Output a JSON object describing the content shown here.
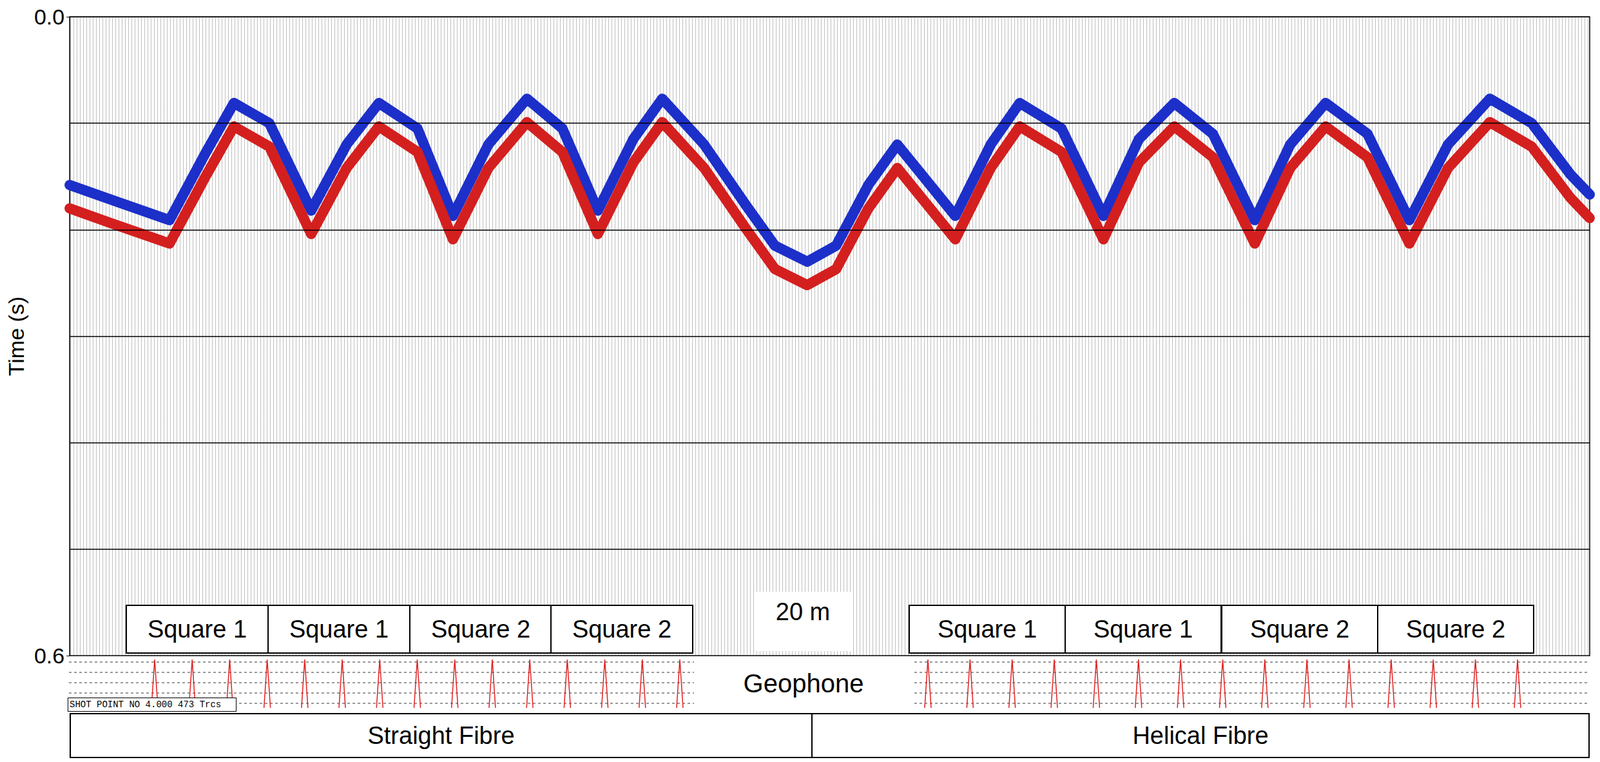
{
  "chart_data": {
    "type": "line",
    "x": [
      1,
      14,
      32,
      43,
      52,
      63,
      76,
      87,
      97,
      109,
      120,
      131,
      143,
      154,
      165,
      176,
      185,
      198,
      211,
      220,
      230,
      239,
      249,
      258,
      276,
      287,
      296,
      309,
      322,
      333,
      344,
      356,
      369,
      380,
      391,
      404,
      417,
      429,
      442,
      455,
      467,
      473
    ],
    "series": [
      {
        "color": "#1c2fc9",
        "values": [
          0.158,
          0.172,
          0.191,
          0.129,
          0.081,
          0.1,
          0.182,
          0.12,
          0.081,
          0.105,
          0.187,
          0.12,
          0.077,
          0.105,
          0.182,
          0.115,
          0.077,
          0.12,
          0.177,
          0.215,
          0.23,
          0.215,
          0.158,
          0.12,
          0.187,
          0.12,
          0.081,
          0.105,
          0.187,
          0.115,
          0.081,
          0.11,
          0.191,
          0.12,
          0.081,
          0.11,
          0.191,
          0.12,
          0.077,
          0.1,
          0.148,
          0.167
        ]
      },
      {
        "color": "#d41f1f",
        "values": [
          0.18,
          0.194,
          0.213,
          0.151,
          0.103,
          0.122,
          0.204,
          0.142,
          0.103,
          0.127,
          0.209,
          0.142,
          0.099,
          0.127,
          0.204,
          0.137,
          0.099,
          0.142,
          0.199,
          0.237,
          0.252,
          0.237,
          0.18,
          0.142,
          0.209,
          0.142,
          0.103,
          0.127,
          0.209,
          0.137,
          0.103,
          0.132,
          0.213,
          0.142,
          0.103,
          0.132,
          0.213,
          0.142,
          0.099,
          0.122,
          0.17,
          0.189
        ]
      }
    ],
    "xlim": [
      1,
      473
    ],
    "ylim": [
      0,
      0.6
    ],
    "yticks": [
      {
        "value": 0,
        "label": "0.0"
      },
      {
        "value": 0.6,
        "label": "0.6"
      }
    ],
    "y_label": "Time (s)",
    "timing_lines": [
      0.1,
      0.2,
      0.3,
      0.4,
      0.5
    ],
    "tick_labels": "y",
    "sections": [
      {
        "label": "Straight Fibre",
        "squares": [
          "Square 1",
          "Square 1",
          "Square 2",
          "Square 2"
        ]
      },
      {
        "label": "Helical Fibre",
        "squares": [
          "Square 1",
          "Square 1",
          "Square 2",
          "Square 2"
        ]
      }
    ],
    "scale_bar": "20 m",
    "geophone": "Geophone",
    "shot_point": "SHOT POINT NO 4.000 473 Trcs"
  }
}
